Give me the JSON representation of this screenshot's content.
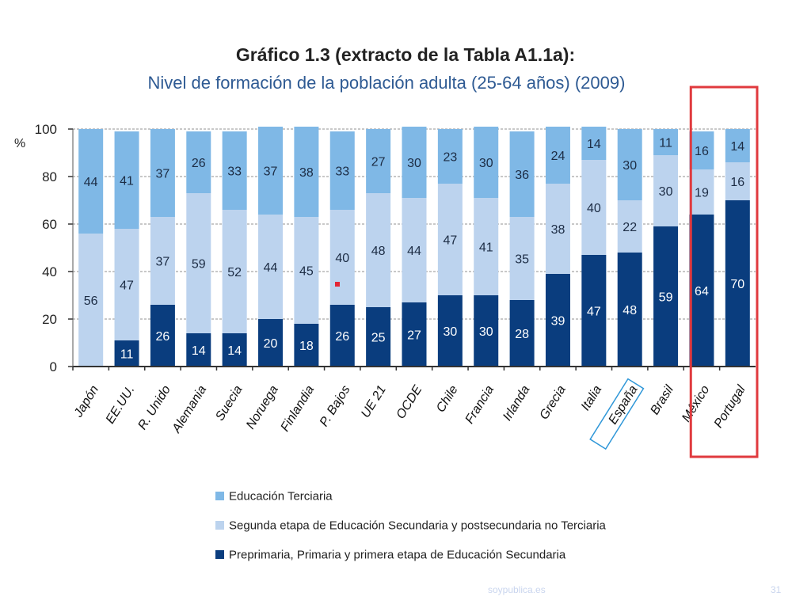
{
  "chart_data": {
    "type": "bar",
    "stacked": true,
    "title": "Gráfico 1.3 (extracto de la Tabla A1.1a):",
    "subtitle": "Nivel de formación de la población adulta (25-64 años) (2009)",
    "ylabel": "%",
    "ylim": [
      0,
      100
    ],
    "yticks": [
      "0",
      "20",
      "40",
      "60",
      "80",
      "100"
    ],
    "grid": true,
    "categories": [
      "Japón",
      "EE.UU.",
      "R. Unido",
      "Alemania",
      "Suecia",
      "Noruega",
      "Finlandia",
      "P. Bajos",
      "UE 21",
      "OCDE",
      "Chile",
      "Francia",
      "Irlanda",
      "Grecia",
      "Italia",
      "España",
      "Brasil",
      "México",
      "Portugal"
    ],
    "series": [
      {
        "name": "Preprimaria, Primaria y primera etapa de Educación Secundaria",
        "color": "#0a3d7e",
        "values": [
          0,
          11,
          26,
          14,
          14,
          20,
          18,
          26,
          25,
          27,
          30,
          30,
          28,
          39,
          47,
          48,
          59,
          64,
          70
        ],
        "labels": [
          "",
          "11",
          "26",
          "14",
          "14",
          "20",
          "18",
          "26",
          "25",
          "27",
          "30",
          "30",
          "28",
          "39",
          "47",
          "48",
          "59",
          "64",
          "70"
        ]
      },
      {
        "name": "Segunda etapa de Educación Secundaria y postsecundaria no Terciaria",
        "color": "#bcd3ee",
        "values": [
          56,
          47,
          37,
          59,
          52,
          44,
          45,
          40,
          48,
          44,
          47,
          41,
          35,
          38,
          40,
          22,
          30,
          19,
          16
        ],
        "labels": [
          "56",
          "47",
          "37",
          "59",
          "52",
          "44",
          "45",
          "40",
          "48",
          "44",
          "47",
          "41",
          "35",
          "38",
          "40",
          "22",
          "30",
          "19",
          "16"
        ]
      },
      {
        "name": "Educación Terciaria",
        "color": "#7fb8e6",
        "values": [
          44,
          41,
          37,
          26,
          33,
          37,
          38,
          33,
          27,
          30,
          23,
          30,
          36,
          24,
          14,
          30,
          11,
          16,
          14
        ],
        "labels": [
          "44",
          "41",
          "37",
          "26",
          "33",
          "37",
          "38",
          "33",
          "27",
          "30",
          "23",
          "30",
          "36",
          "24",
          "14",
          "30",
          "11",
          "16",
          "14"
        ]
      }
    ],
    "legend": [
      "Educación Terciaria",
      "Segunda etapa de Educación Secundaria y postsecundaria no Terciaria",
      "Preprimaria, Primaria y primera etapa de Educación Secundaria"
    ],
    "legend_placement": "bottom",
    "highlight_boxed": [
      "España"
    ],
    "highlight_red_box": [
      "México",
      "Portugal"
    ]
  },
  "footer": {
    "source": "soypublica.es",
    "page": "31"
  }
}
